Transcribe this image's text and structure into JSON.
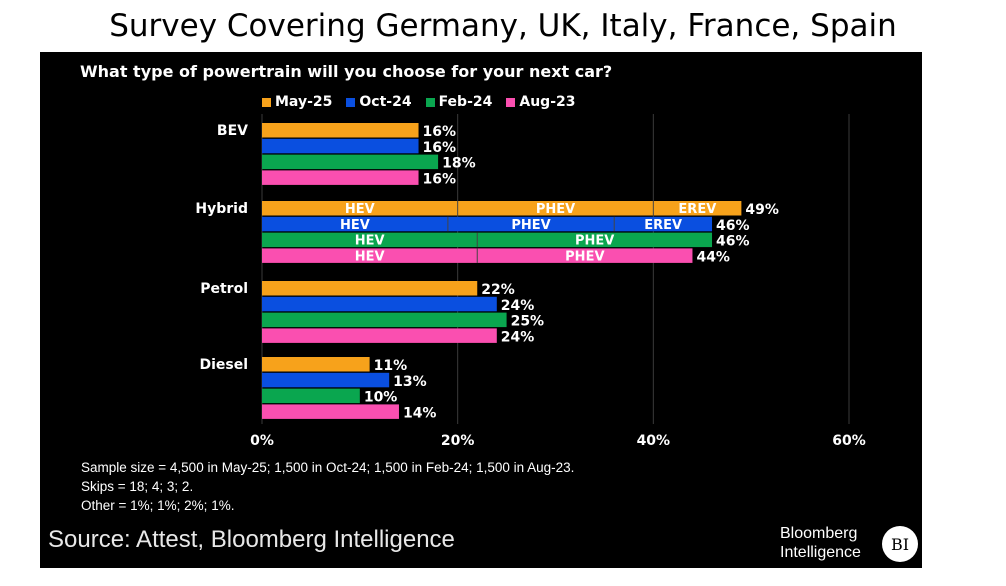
{
  "title": "Survey Covering Germany, UK, Italy, France, Spain",
  "chart_data": {
    "type": "bar",
    "orientation": "horizontal",
    "title": "What type of powertrain will you choose for your next car?",
    "categories": [
      "BEV",
      "Hybrid",
      "Petrol",
      "Diesel"
    ],
    "series": [
      {
        "name": "May-25",
        "color": "#f7a21b",
        "values": [
          16,
          49,
          22,
          11
        ],
        "hybrid_segments": {
          "HEV": 20,
          "PHEV": 20,
          "EREV": 9
        }
      },
      {
        "name": "Oct-24",
        "color": "#0a4fe0",
        "values": [
          16,
          46,
          24,
          13
        ],
        "hybrid_segments": {
          "HEV": 19,
          "PHEV": 17,
          "EREV": 10
        }
      },
      {
        "name": "Feb-24",
        "color": "#0aa64f",
        "values": [
          18,
          46,
          25,
          10
        ],
        "hybrid_segments": {
          "HEV": 22,
          "PHEV": 24
        }
      },
      {
        "name": "Aug-23",
        "color": "#fa4fb0",
        "values": [
          16,
          44,
          24,
          14
        ],
        "hybrid_segments": {
          "HEV": 22,
          "PHEV": 22
        }
      }
    ],
    "xlim": [
      0,
      60
    ],
    "xticks": [
      "0%",
      "20%",
      "40%",
      "60%"
    ],
    "tick_values": [
      0,
      20,
      40,
      60
    ],
    "legend_position": "top",
    "grid": true
  },
  "notes": [
    "Sample size = 4,500 in May-25; 1,500 in Oct-24; 1,500 in Feb-24; 1,500 in Aug-23.",
    "Skips = 18; 4; 3; 2.",
    "Other = 1%; 1%; 2%; 1%."
  ],
  "source": "Source: Attest, Bloomberg Intelligence",
  "logo": {
    "line1": "Bloomberg",
    "line2": "Intelligence",
    "badge": "BI"
  }
}
